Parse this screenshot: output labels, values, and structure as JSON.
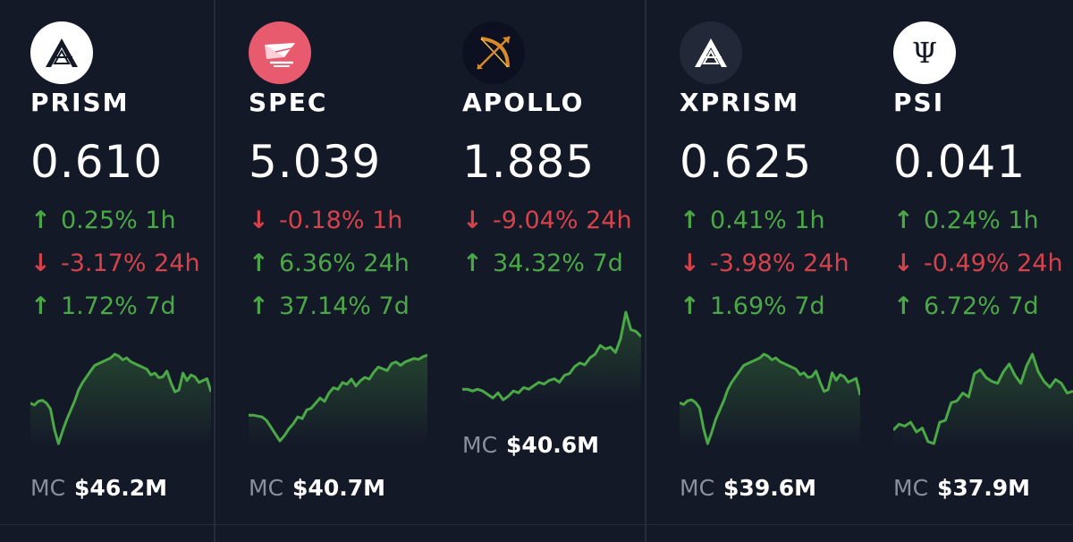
{
  "cards": [
    {
      "symbol": "PRISM",
      "price": "0.610",
      "icon": "prism-logo-icon",
      "changes": [
        {
          "dir": "up",
          "arrow": "↑",
          "text": "0.25% 1h"
        },
        {
          "dir": "down",
          "arrow": "↓",
          "text": "-3.17% 24h"
        },
        {
          "dir": "up",
          "arrow": "↑",
          "text": "1.72% 7d"
        }
      ],
      "sparkline": [
        52,
        54,
        50,
        49,
        52,
        58,
        80,
        95,
        82,
        70,
        60,
        50,
        38,
        30,
        24,
        18,
        12,
        10,
        8,
        6,
        4,
        0,
        2,
        6,
        4,
        8,
        10,
        12,
        14,
        16,
        22,
        20,
        25,
        24,
        18,
        30,
        40,
        38,
        20,
        28,
        22,
        24,
        30,
        28,
        26,
        40
      ],
      "mc_label": "MC",
      "mc_value": "$46.2M"
    },
    {
      "symbol": "SPEC",
      "price": "5.039",
      "icon": "spec-logo-icon",
      "changes": [
        {
          "dir": "down",
          "arrow": "↓",
          "text": "-0.18% 1h"
        },
        {
          "dir": "up",
          "arrow": "↑",
          "text": "6.36% 24h"
        },
        {
          "dir": "up",
          "arrow": "↑",
          "text": "37.14% 7d"
        }
      ],
      "sparkline": [
        70,
        70,
        71,
        72,
        76,
        84,
        92,
        100,
        94,
        86,
        80,
        72,
        74,
        64,
        62,
        56,
        50,
        54,
        44,
        38,
        40,
        32,
        34,
        28,
        36,
        30,
        26,
        28,
        20,
        14,
        16,
        18,
        10,
        8,
        12,
        8,
        6,
        4,
        5,
        2,
        0
      ],
      "mc_label": "MC",
      "mc_value": "$40.7M"
    },
    {
      "symbol": "APOLLO",
      "price": "1.885",
      "icon": "apollo-bow-icon",
      "changes": [
        {
          "dir": "down",
          "arrow": "↓",
          "text": "-9.04% 24h"
        },
        {
          "dir": "up",
          "arrow": "↑",
          "text": "34.32% 7d"
        }
      ],
      "sparkline": [
        88,
        88,
        90,
        88,
        90,
        94,
        98,
        92,
        100,
        96,
        90,
        92,
        86,
        88,
        84,
        80,
        82,
        78,
        76,
        80,
        72,
        70,
        62,
        58,
        60,
        52,
        48,
        38,
        42,
        40,
        46,
        30,
        0,
        20,
        22,
        28
      ],
      "mc_label": "MC",
      "mc_value": "$40.6M"
    },
    {
      "symbol": "XPRISM",
      "price": "0.625",
      "icon": "xprism-logo-icon",
      "changes": [
        {
          "dir": "up",
          "arrow": "↑",
          "text": "0.41% 1h"
        },
        {
          "dir": "down",
          "arrow": "↓",
          "text": "-3.98% 24h"
        },
        {
          "dir": "up",
          "arrow": "↑",
          "text": "1.69% 7d"
        }
      ],
      "sparkline": [
        52,
        54,
        50,
        49,
        52,
        58,
        80,
        96,
        84,
        70,
        60,
        50,
        38,
        30,
        24,
        18,
        12,
        10,
        8,
        6,
        4,
        0,
        2,
        6,
        4,
        8,
        10,
        12,
        14,
        16,
        22,
        20,
        25,
        24,
        18,
        30,
        40,
        38,
        20,
        28,
        22,
        24,
        30,
        28,
        26,
        44
      ],
      "mc_label": "MC",
      "mc_value": "$39.6M"
    },
    {
      "symbol": "PSI",
      "price": "0.041",
      "icon": "psi-logo-icon",
      "changes": [
        {
          "dir": "up",
          "arrow": "↑",
          "text": "0.24% 1h"
        },
        {
          "dir": "down",
          "arrow": "↓",
          "text": "-0.49% 24h"
        },
        {
          "dir": "up",
          "arrow": "↑",
          "text": "6.72% 7d"
        }
      ],
      "sparkline": [
        78,
        72,
        74,
        70,
        80,
        76,
        90,
        92,
        70,
        68,
        50,
        48,
        40,
        44,
        20,
        16,
        24,
        28,
        30,
        18,
        10,
        22,
        30,
        12,
        0,
        18,
        28,
        34,
        26,
        30,
        40,
        38
      ],
      "mc_label": "MC",
      "mc_value": "$37.9M"
    }
  ]
}
